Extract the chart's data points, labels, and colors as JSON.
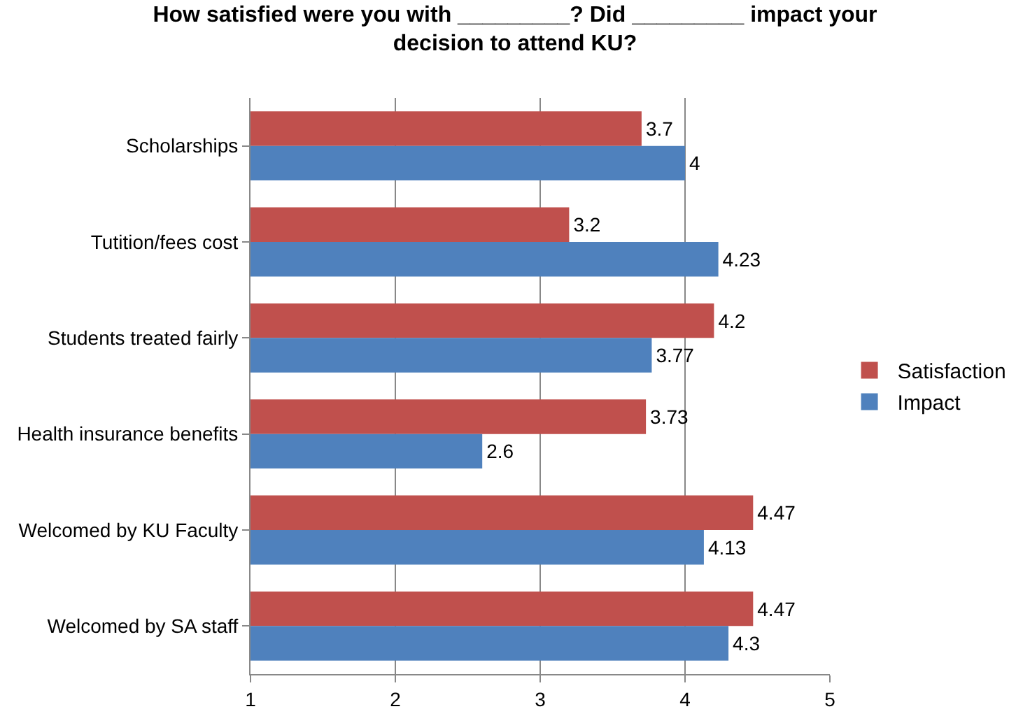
{
  "chart_data": {
    "type": "bar",
    "orientation": "horizontal",
    "title": "How satisfied were you with _________? Did _________ impact your\ndecision to attend KU?",
    "categories": [
      "Scholarships",
      "Tutition/fees cost",
      "Students treated fairly",
      "Health insurance benefits",
      "Welcomed by KU Faculty",
      "Welcomed by SA staff"
    ],
    "series": [
      {
        "name": "Satisfaction",
        "color": "#c0504d",
        "values": [
          3.7,
          3.2,
          4.2,
          3.73,
          4.47,
          4.47
        ]
      },
      {
        "name": "Impact",
        "color": "#4f81bd",
        "values": [
          4,
          4.23,
          3.77,
          2.6,
          4.13,
          4.3
        ]
      }
    ],
    "xlim": [
      1,
      5
    ],
    "xticks": [
      1,
      2,
      3,
      4,
      5
    ],
    "grid": "x",
    "legend": "right",
    "data_labels": true
  }
}
